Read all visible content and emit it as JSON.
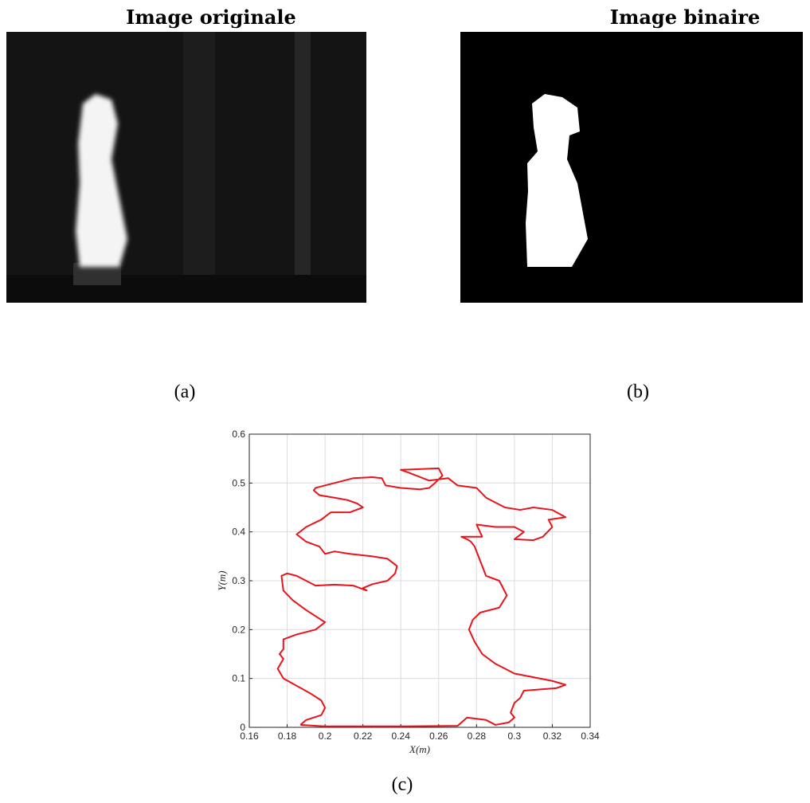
{
  "images": [
    {
      "title": "Image originale",
      "caption": "(a)"
    },
    {
      "title": "Image binaire",
      "caption": "(b)"
    }
  ],
  "chart_data": {
    "type": "line",
    "caption": "(c)",
    "xlabel": "X(m)",
    "ylabel": "Y(m)",
    "color": "#e8141b",
    "grid": true,
    "xlim": [
      0.16,
      0.34
    ],
    "xticks": [
      0.16,
      0.18,
      0.2,
      0.22,
      0.24,
      0.26,
      0.28,
      0.3,
      0.32,
      0.34
    ],
    "ylim": [
      0,
      0.6
    ],
    "yticks": [
      0,
      0.1,
      0.2,
      0.3,
      0.4,
      0.5,
      0.6
    ],
    "x": [
      0.187,
      0.195,
      0.2,
      0.24,
      0.27,
      0.275,
      0.285,
      0.29,
      0.297,
      0.3,
      0.298,
      0.3,
      0.303,
      0.305,
      0.315,
      0.322,
      0.327,
      0.32,
      0.3,
      0.29,
      0.283,
      0.279,
      0.276,
      0.278,
      0.282,
      0.292,
      0.296,
      0.292,
      0.285,
      0.283,
      0.281,
      0.279,
      0.277,
      0.275,
      0.272,
      0.283,
      0.28,
      0.29,
      0.3,
      0.305,
      0.3,
      0.31,
      0.315,
      0.32,
      0.318,
      0.327,
      0.32,
      0.31,
      0.303,
      0.295,
      0.285,
      0.28,
      0.27,
      0.265,
      0.255,
      0.245,
      0.24,
      0.26,
      0.262,
      0.258,
      0.255,
      0.25,
      0.24,
      0.232,
      0.23,
      0.225,
      0.215,
      0.205,
      0.195,
      0.194,
      0.197,
      0.205,
      0.212,
      0.217,
      0.22,
      0.213,
      0.203,
      0.198,
      0.19,
      0.185,
      0.19,
      0.197,
      0.2,
      0.205,
      0.213,
      0.225,
      0.233,
      0.238,
      0.237,
      0.233,
      0.225,
      0.22,
      0.222,
      0.215,
      0.205,
      0.195,
      0.19,
      0.185,
      0.18,
      0.177,
      0.178,
      0.183,
      0.19,
      0.2,
      0.195,
      0.185,
      0.178,
      0.178,
      0.176,
      0.178,
      0.175,
      0.178,
      0.185,
      0.192,
      0.198,
      0.2,
      0.198,
      0.19,
      0.187
    ],
    "values": [
      0.005,
      0.003,
      0.002,
      0.002,
      0.003,
      0.02,
      0.015,
      0.005,
      0.01,
      0.02,
      0.03,
      0.05,
      0.06,
      0.075,
      0.078,
      0.08,
      0.087,
      0.095,
      0.11,
      0.13,
      0.15,
      0.175,
      0.2,
      0.22,
      0.235,
      0.245,
      0.27,
      0.3,
      0.31,
      0.33,
      0.35,
      0.37,
      0.38,
      0.385,
      0.39,
      0.39,
      0.415,
      0.41,
      0.41,
      0.4,
      0.385,
      0.383,
      0.39,
      0.41,
      0.425,
      0.43,
      0.445,
      0.45,
      0.445,
      0.45,
      0.47,
      0.49,
      0.495,
      0.51,
      0.505,
      0.52,
      0.527,
      0.53,
      0.515,
      0.5,
      0.49,
      0.487,
      0.49,
      0.495,
      0.51,
      0.512,
      0.51,
      0.5,
      0.49,
      0.485,
      0.475,
      0.47,
      0.465,
      0.458,
      0.45,
      0.44,
      0.44,
      0.425,
      0.41,
      0.395,
      0.38,
      0.37,
      0.355,
      0.36,
      0.355,
      0.35,
      0.345,
      0.33,
      0.315,
      0.3,
      0.293,
      0.285,
      0.28,
      0.29,
      0.292,
      0.29,
      0.3,
      0.31,
      0.315,
      0.31,
      0.28,
      0.26,
      0.24,
      0.215,
      0.2,
      0.19,
      0.18,
      0.16,
      0.15,
      0.14,
      0.12,
      0.1,
      0.085,
      0.07,
      0.055,
      0.04,
      0.025,
      0.015,
      0.005
    ]
  }
}
